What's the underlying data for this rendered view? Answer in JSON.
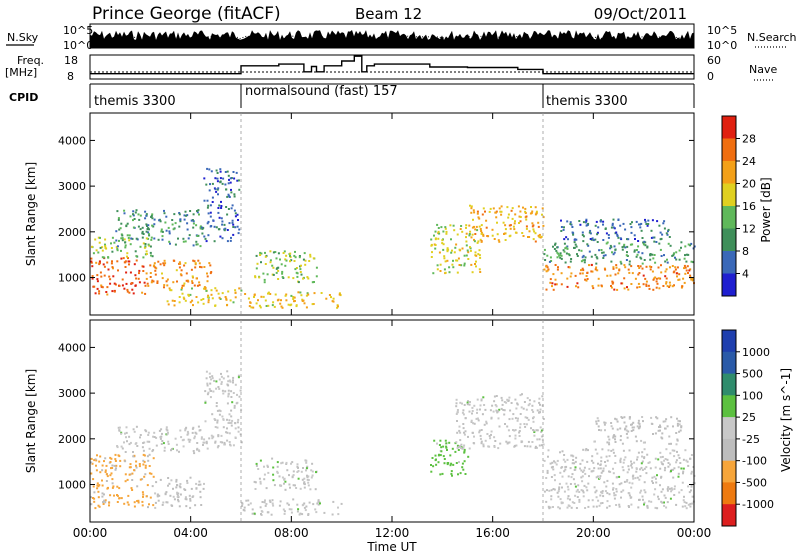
{
  "header": {
    "station": "Prince George (fitACF)",
    "beam": "Beam 12",
    "date": "09/Oct/2011"
  },
  "aux_panels": {
    "nsky_label": "N.Sky",
    "nsearch_label": "N.Search",
    "noise_ticks": [
      "10^5",
      "10^0"
    ],
    "freq_label_1": "Freq.",
    "freq_label_2": "[MHz]",
    "freq_ticks": [
      "18",
      "8"
    ],
    "nave_ticks": [
      "60",
      "0"
    ],
    "nave_label": "Nave",
    "cpid_label": "CPID",
    "cpid_segments": [
      {
        "name": "themis 3300",
        "start_hour": 0,
        "end_hour": 6
      },
      {
        "name": "normalsound (fast) 157",
        "start_hour": 6,
        "end_hour": 18
      },
      {
        "name": "themis 3300",
        "start_hour": 18,
        "end_hour": 24
      }
    ],
    "freq_steps": [
      {
        "t0": 0,
        "t1": 6,
        "mhz": 10.2
      },
      {
        "t0": 6,
        "t1": 7.5,
        "mhz": 13.5
      },
      {
        "t0": 7.5,
        "t1": 8.5,
        "mhz": 14.2
      },
      {
        "t0": 8.5,
        "t1": 8.8,
        "mhz": 11.0
      },
      {
        "t0": 8.8,
        "t1": 9.0,
        "mhz": 13.2
      },
      {
        "t0": 9.0,
        "t1": 9.3,
        "mhz": 11.0
      },
      {
        "t0": 9.3,
        "t1": 10.0,
        "mhz": 13.5
      },
      {
        "t0": 10.0,
        "t1": 10.5,
        "mhz": 15.5
      },
      {
        "t0": 10.5,
        "t1": 10.8,
        "mhz": 17.5
      },
      {
        "t0": 10.8,
        "t1": 11.0,
        "mhz": 11.0
      },
      {
        "t0": 11.0,
        "t1": 11.3,
        "mhz": 13.5
      },
      {
        "t0": 11.3,
        "t1": 13.5,
        "mhz": 14.2
      },
      {
        "t0": 13.5,
        "t1": 15.0,
        "mhz": 13.0
      },
      {
        "t0": 15.0,
        "t1": 17.0,
        "mhz": 12.8
      },
      {
        "t0": 17.0,
        "t1": 18.0,
        "mhz": 12.0
      },
      {
        "t0": 18.0,
        "t1": 24.0,
        "mhz": 10.2
      }
    ]
  },
  "power_panel": {
    "ylabel": "Slant Range [km]",
    "yticks": [
      1000,
      2000,
      3000,
      4000
    ],
    "colorbar_label": "Power [dB]",
    "colorbar_ticks": [
      "28",
      "24",
      "20",
      "16",
      "12",
      "8",
      "4"
    ]
  },
  "velocity_panel": {
    "ylabel": "Slant Range [km]",
    "yticks": [
      1000,
      2000,
      3000,
      4000
    ],
    "colorbar_label": "Velocity [m s^-1]",
    "colorbar_ticks": [
      "1000",
      "500",
      "100",
      "25",
      "-25",
      "-100",
      "-500",
      "-1000"
    ]
  },
  "time_axis": {
    "xlabel": "Time UT",
    "ticks": [
      "00:00",
      "04:00",
      "08:00",
      "12:00",
      "16:00",
      "20:00",
      "00:00"
    ]
  },
  "colors": {
    "power_scale": [
      "#1f1fd0",
      "#3a68b8",
      "#3f8f5a",
      "#5fb85a",
      "#e0d020",
      "#f3a018",
      "#f06e10",
      "#e02010"
    ],
    "velocity_scale": [
      "#dd1f1f",
      "#ee7a10",
      "#f6a53a",
      "#bdbdbd",
      "#c8c8c8",
      "#5cc040",
      "#2f8c6c",
      "#2a5aa8",
      "#1f3fae"
    ],
    "ground_scatter": "#c0c0c0"
  },
  "chart_data": [
    {
      "type": "heatmap",
      "title": "Power",
      "xlabel": "Time UT",
      "ylabel": "Slant Range [km]",
      "xlim_hours": [
        0,
        24
      ],
      "ylim": [
        180,
        4600
      ],
      "color_range_db": [
        0,
        30
      ],
      "regions": [
        {
          "t0": 0.0,
          "t1": 2.2,
          "r0": 650,
          "r1": 1450,
          "value": 26
        },
        {
          "t0": 0.0,
          "t1": 2.5,
          "r0": 1450,
          "r1": 1900,
          "value": 14
        },
        {
          "t0": 2.2,
          "t1": 4.8,
          "r0": 800,
          "r1": 1400,
          "value": 22
        },
        {
          "t0": 1.0,
          "t1": 4.5,
          "r0": 1700,
          "r1": 2500,
          "value": 10
        },
        {
          "t0": 4.5,
          "t1": 5.9,
          "r0": 1800,
          "r1": 3400,
          "value": 6
        },
        {
          "t0": 3.0,
          "t1": 6.0,
          "r0": 400,
          "r1": 800,
          "value": 18
        },
        {
          "t0": 6.0,
          "t1": 10.0,
          "r0": 350,
          "r1": 700,
          "value": 18
        },
        {
          "t0": 6.5,
          "t1": 9.0,
          "r0": 900,
          "r1": 1600,
          "value": 14
        },
        {
          "t0": 13.5,
          "t1": 15.5,
          "r0": 1100,
          "r1": 2200,
          "value": 16
        },
        {
          "t0": 15.0,
          "t1": 18.0,
          "r0": 1800,
          "r1": 2600,
          "value": 20
        },
        {
          "t0": 18.0,
          "t1": 24.0,
          "r0": 750,
          "r1": 1300,
          "value": 23
        },
        {
          "t0": 18.0,
          "t1": 24.0,
          "r0": 1300,
          "r1": 1800,
          "value": 10
        },
        {
          "t0": 18.5,
          "t1": 23.0,
          "r0": 1800,
          "r1": 2300,
          "value": 6
        }
      ]
    },
    {
      "type": "heatmap",
      "title": "Velocity",
      "xlabel": "Time UT",
      "ylabel": "Slant Range [km]",
      "xlim_hours": [
        0,
        24
      ],
      "ylim": [
        180,
        4600
      ],
      "color_range_ms": [
        -1000,
        1000
      ],
      "regions": [
        {
          "t0": 0.0,
          "t1": 2.5,
          "r0": 500,
          "r1": 1700,
          "value": -400
        },
        {
          "t0": 2.5,
          "t1": 4.5,
          "r0": 500,
          "r1": 1200,
          "value": -150
        },
        {
          "t0": 1.0,
          "t1": 4.5,
          "r0": 1700,
          "r1": 2300,
          "value": 0
        },
        {
          "t0": 4.5,
          "t1": 6.0,
          "r0": 1800,
          "r1": 3500,
          "value": 0
        },
        {
          "t0": 6.0,
          "t1": 10.0,
          "r0": 350,
          "r1": 700,
          "value": 0
        },
        {
          "t0": 6.5,
          "t1": 9.0,
          "r0": 900,
          "r1": 1600,
          "value": 0
        },
        {
          "t0": 13.5,
          "t1": 15.0,
          "r0": 1200,
          "r1": 2000,
          "value": 200
        },
        {
          "t0": 14.5,
          "t1": 18.0,
          "r0": 1800,
          "r1": 3000,
          "value": 0
        },
        {
          "t0": 18.0,
          "t1": 24.0,
          "r0": 500,
          "r1": 1800,
          "value": 0
        },
        {
          "t0": 20.0,
          "t1": 23.5,
          "r0": 1900,
          "r1": 2500,
          "value": -150
        }
      ]
    }
  ]
}
